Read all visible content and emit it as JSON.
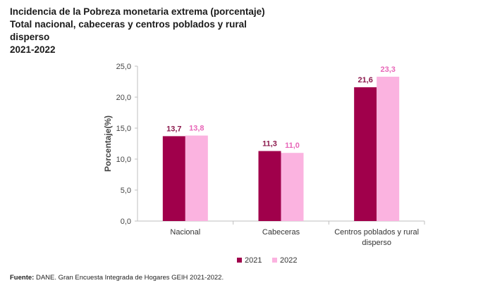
{
  "title_lines": [
    "Incidencia de la Pobreza monetaria extrema (porcentaje)",
    "Total nacional, cabeceras y centros poblados y rural",
    "disperso",
    "2021-2022"
  ],
  "footer": {
    "label": "Fuente:",
    "text": " DANE. Gran Encuesta Integrada de Hogares GEIH 2021-2022."
  },
  "chart_data": {
    "type": "bar",
    "categories": [
      [
        "Nacional"
      ],
      [
        "Cabeceras"
      ],
      [
        "Centros poblados y rural",
        "disperso"
      ]
    ],
    "series": [
      {
        "name": "2021",
        "values": [
          13.7,
          11.3,
          21.6
        ],
        "labels": [
          "13,7",
          "11,3",
          "21,6"
        ],
        "color": "#a0004b",
        "label_color": "#8c1a4d"
      },
      {
        "name": "2022",
        "values": [
          13.8,
          11.0,
          23.3
        ],
        "labels": [
          "13,8",
          "11,0",
          "23,3"
        ],
        "color": "#fbb3e0",
        "label_color": "#e866b8"
      }
    ],
    "ylabel": "Porcentaje(%)",
    "ylim": [
      0,
      25
    ],
    "yticks": [
      0,
      5,
      10,
      15,
      20,
      25
    ],
    "ytick_labels": [
      "0,0",
      "5,0",
      "10,0",
      "15,0",
      "20,0",
      "25,0"
    ],
    "grid": false,
    "legend": "bottom-center"
  }
}
